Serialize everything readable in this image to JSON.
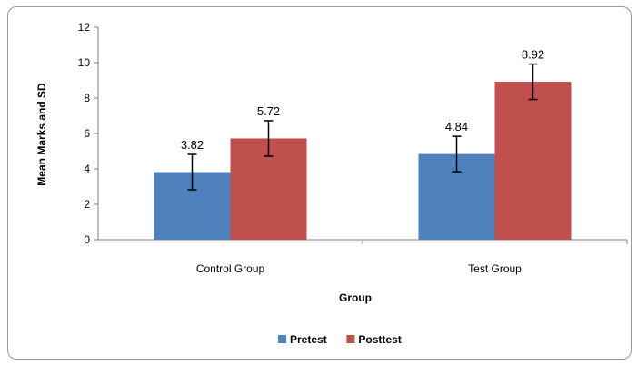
{
  "chart_data": {
    "type": "bar",
    "categories": [
      "Control Group",
      "Test Group"
    ],
    "series": [
      {
        "name": "Pretest",
        "values": [
          3.82,
          4.84
        ],
        "error": [
          1.0,
          1.0
        ],
        "color": "#4f81bd"
      },
      {
        "name": "Posttest",
        "values": [
          5.72,
          8.92
        ],
        "error": [
          1.0,
          1.0
        ],
        "color": "#c0504d"
      }
    ],
    "data_labels": [
      "3.82",
      "4.84",
      "5.72",
      "8.92"
    ],
    "title": "",
    "xlabel": "Group",
    "ylabel": "Mean Marks and SD",
    "ylim": [
      0,
      12
    ],
    "yticks": [
      0,
      2,
      4,
      6,
      8,
      10,
      12
    ],
    "grid": false,
    "legend_position": "bottom"
  }
}
